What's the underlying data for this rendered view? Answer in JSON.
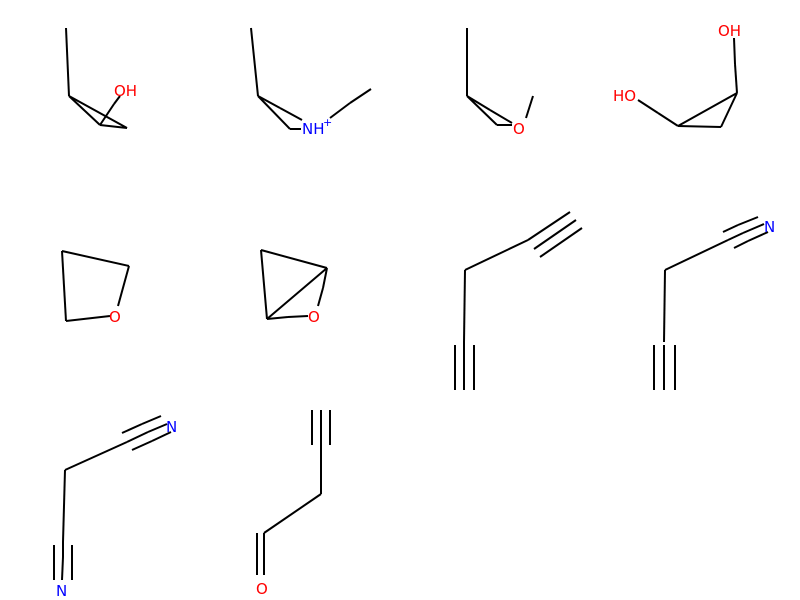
{
  "colors": {
    "carbon": "#000000",
    "oxygen": "#ff0000",
    "nitrogen": "#0000ff"
  },
  "molecules": [
    {
      "name": "methyl-cyclopropanol",
      "labels": {
        "oh": "OH"
      }
    },
    {
      "name": "methyl-azetidinium",
      "labels": {
        "nh": "NH",
        "charge": "+"
      }
    },
    {
      "name": "dimethyl-oxetane",
      "labels": {
        "o": "O"
      }
    },
    {
      "name": "cyclopropane-diol",
      "labels": {
        "ho": "HO",
        "oh": "OH"
      }
    },
    {
      "name": "tetrahydrofuran",
      "labels": {
        "o": "O"
      }
    },
    {
      "name": "oxabicyclo",
      "labels": {
        "o": "O"
      }
    },
    {
      "name": "penta-diyne",
      "labels": {}
    },
    {
      "name": "butynenitrile",
      "labels": {
        "n": "N"
      }
    },
    {
      "name": "malononitrile",
      "labels": {
        "n1": "N",
        "n2": "N"
      }
    },
    {
      "name": "butynal",
      "labels": {
        "o": "O"
      }
    }
  ]
}
